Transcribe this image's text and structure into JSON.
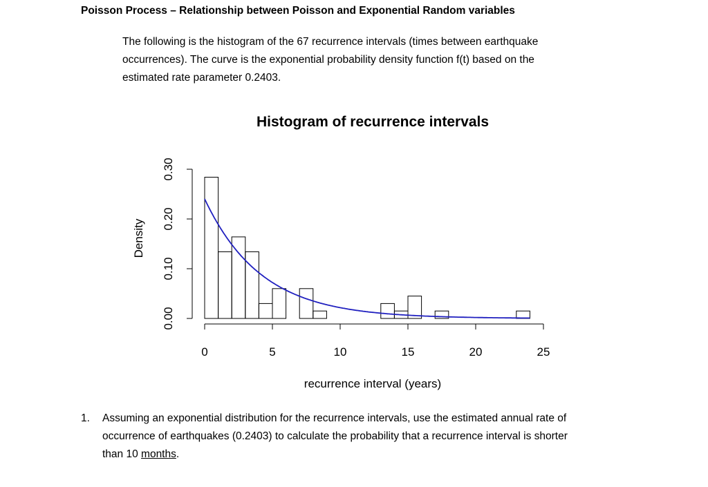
{
  "heading": "Poisson Process – Relationship between Poisson and Exponential Random variables",
  "intro_lines": [
    "The following is the histogram of the 67 recurrence intervals (times between earthquake",
    "occurrences).  The curve is the exponential probability density function f(t) based on the",
    "estimated rate parameter 0.2403."
  ],
  "chart_data": {
    "type": "bar",
    "title": "Histogram of recurrence intervals",
    "xlabel": "recurrence interval (years)",
    "ylabel": "Density",
    "xlim": [
      0,
      25
    ],
    "ylim": [
      0,
      0.3
    ],
    "x_ticks": [
      0,
      5,
      10,
      15,
      20,
      25
    ],
    "x_tick_labels": [
      "0",
      "5",
      "10",
      "15",
      "20",
      "25"
    ],
    "y_ticks": [
      0.0,
      0.1,
      0.2,
      0.3
    ],
    "y_tick_labels": [
      "0.00",
      "0.10",
      "0.20",
      "0.30"
    ],
    "bin_width": 1,
    "bins": [
      {
        "x0": 0,
        "x1": 1,
        "density": 0.284
      },
      {
        "x0": 1,
        "x1": 2,
        "density": 0.134
      },
      {
        "x0": 2,
        "x1": 3,
        "density": 0.164
      },
      {
        "x0": 3,
        "x1": 4,
        "density": 0.134
      },
      {
        "x0": 4,
        "x1": 5,
        "density": 0.03
      },
      {
        "x0": 5,
        "x1": 6,
        "density": 0.06
      },
      {
        "x0": 6,
        "x1": 7,
        "density": 0.0
      },
      {
        "x0": 7,
        "x1": 8,
        "density": 0.06
      },
      {
        "x0": 8,
        "x1": 9,
        "density": 0.015
      },
      {
        "x0": 13,
        "x1": 14,
        "density": 0.03
      },
      {
        "x0": 14,
        "x1": 15,
        "density": 0.015
      },
      {
        "x0": 15,
        "x1": 16,
        "density": 0.045
      },
      {
        "x0": 17,
        "x1": 18,
        "density": 0.015
      },
      {
        "x0": 23,
        "x1": 24,
        "density": 0.015
      }
    ],
    "curve": {
      "type": "exponential_pdf",
      "rate": 0.2403,
      "x_range": [
        0,
        24
      ],
      "color": "#1f1fbf"
    }
  },
  "question": {
    "number": "1.",
    "lines": [
      "Assuming an exponential distribution for the recurrence intervals, use the estimated annual rate of",
      "occurrence of earthquakes (0.2403) to calculate the probability that a recurrence interval is shorter"
    ],
    "last_line_prefix": "than 10 ",
    "last_line_underlined": "months",
    "last_line_suffix": "."
  }
}
